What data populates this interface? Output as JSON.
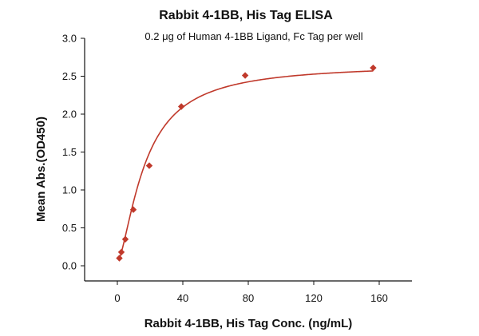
{
  "chart_data": {
    "type": "scatter",
    "title": "Rabbit 4-1BB, His Tag ELISA",
    "subtitle": "0.2 μg of Human 4-1BB Ligand, Fc Tag per well",
    "xlabel": "Rabbit 4-1BB, His Tag Conc. (ng/mL)",
    "ylabel": "Mean Abs.(OD450)",
    "xlim": [
      -20,
      180
    ],
    "ylim": [
      -0.2,
      3.0
    ],
    "x_ticks": [
      0,
      40,
      80,
      120,
      160
    ],
    "y_ticks": [
      0.0,
      0.5,
      1.0,
      1.5,
      2.0,
      2.5,
      3.0
    ],
    "x_tick_labels": [
      "0",
      "40",
      "80",
      "120",
      "160"
    ],
    "y_tick_labels": [
      "0.0",
      "0.5",
      "1.0",
      "1.5",
      "2.0",
      "2.5",
      "3.0"
    ],
    "grid": false,
    "legend": "none",
    "marker_color": "#c0392b",
    "curve_color": "#c0392b",
    "series": [
      {
        "marker": "diamond",
        "x": [
          1.22,
          2.44,
          4.88,
          9.77,
          19.5,
          39.1,
          78.1,
          156.3
        ],
        "y": [
          0.1,
          0.18,
          0.35,
          0.74,
          1.32,
          2.1,
          2.51,
          2.61
        ]
      }
    ],
    "fit": {
      "type": "4PL",
      "bottom": 0.04,
      "top": 2.66,
      "ec50": 17.0,
      "hill": 1.5
    }
  }
}
